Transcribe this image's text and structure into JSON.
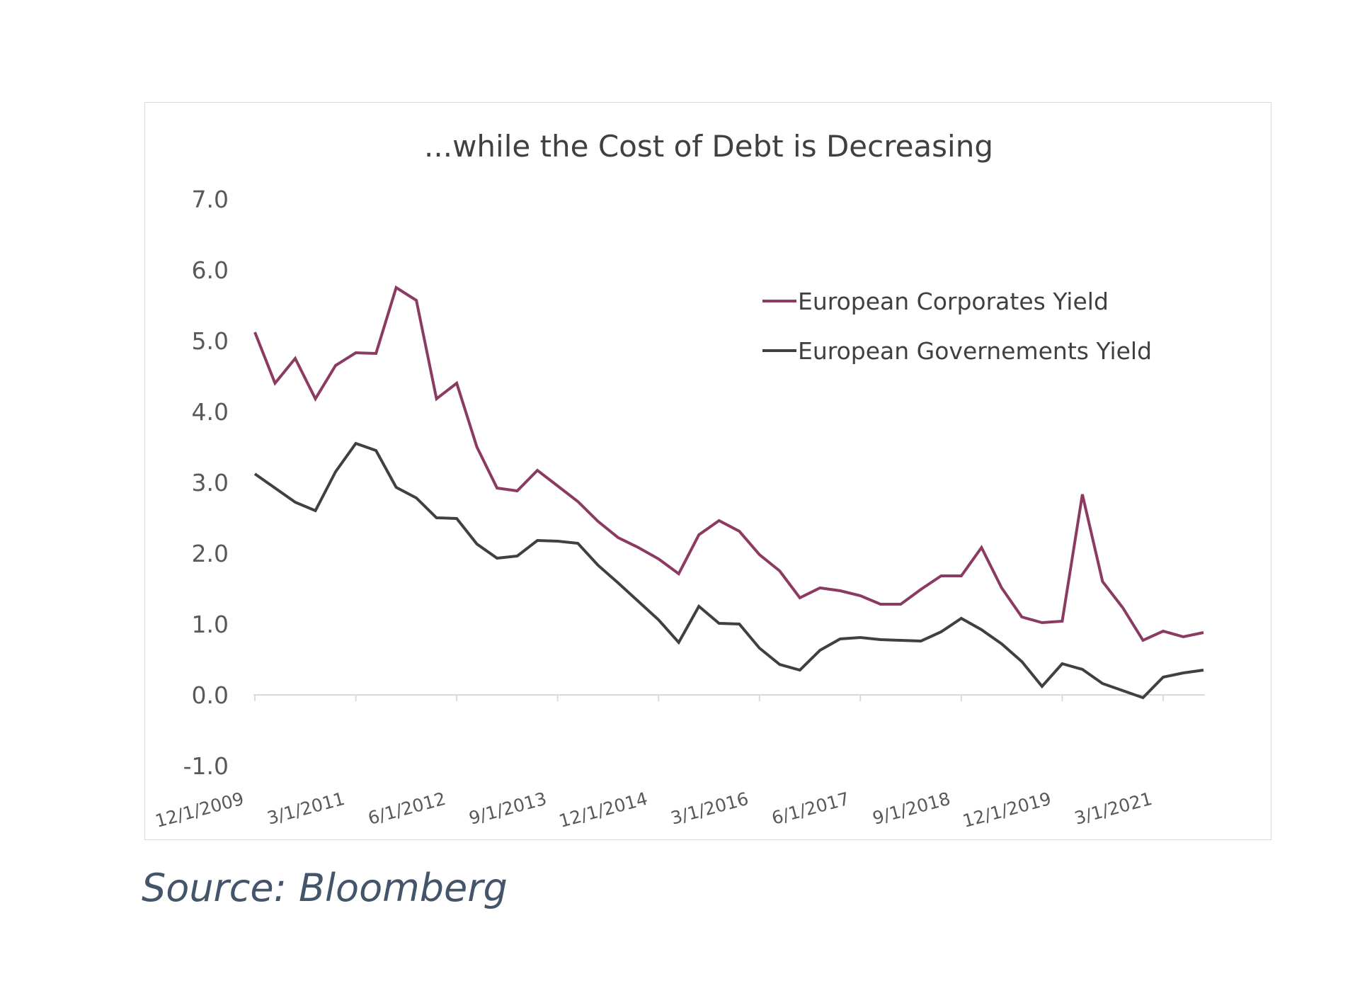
{
  "chart_data": {
    "type": "line",
    "title": "...while the Cost of Debt is Decreasing",
    "xlabel": "",
    "ylabel": "",
    "ylim": [
      -1.0,
      7.0
    ],
    "yticks": [
      "7.0",
      "6.0",
      "5.0",
      "4.0",
      "3.0",
      "2.0",
      "1.0",
      "0.0",
      "-1.0"
    ],
    "ytick_values": [
      7,
      6,
      5,
      4,
      3,
      2,
      1,
      0,
      -1
    ],
    "xtick_labels": [
      "12/1/2009",
      "3/1/2011",
      "6/1/2012",
      "9/1/2013",
      "12/1/2014",
      "3/1/2016",
      "6/1/2017",
      "9/1/2018",
      "12/1/2019",
      "3/1/2021"
    ],
    "grid": false,
    "legend_position": "upper-right",
    "x_start": "12/1/2009",
    "x_step": "quarterly",
    "series": [
      {
        "name": "European Corporates  Yield",
        "color": "#8b3a62",
        "values": [
          5.12,
          4.4,
          4.75,
          4.18,
          4.65,
          4.83,
          4.82,
          5.75,
          5.57,
          4.18,
          4.4,
          3.5,
          2.92,
          2.88,
          3.17,
          2.95,
          2.73,
          2.45,
          2.22,
          2.08,
          1.92,
          1.71,
          2.26,
          2.46,
          2.31,
          1.98,
          1.75,
          1.37,
          1.51,
          1.47,
          1.4,
          1.28,
          1.28,
          1.49,
          1.68,
          1.68,
          2.08,
          1.51,
          1.1,
          1.02,
          1.04,
          2.83,
          1.6,
          1.23,
          0.77,
          0.9,
          0.82,
          0.88
        ]
      },
      {
        "name": "European Governements Yield",
        "color": "#404040",
        "values": [
          3.12,
          2.92,
          2.72,
          2.6,
          3.15,
          3.55,
          3.45,
          2.93,
          2.78,
          2.5,
          2.49,
          2.13,
          1.93,
          1.96,
          2.18,
          2.17,
          2.14,
          1.83,
          1.58,
          1.32,
          1.06,
          0.74,
          1.25,
          1.01,
          1.0,
          0.66,
          0.43,
          0.35,
          0.63,
          0.79,
          0.81,
          0.78,
          0.77,
          0.76,
          0.89,
          1.08,
          0.92,
          0.72,
          0.47,
          0.12,
          0.44,
          0.36,
          0.16,
          0.06,
          -0.04,
          0.25,
          0.31,
          0.35
        ]
      }
    ]
  },
  "source": "Source: Bloomberg"
}
